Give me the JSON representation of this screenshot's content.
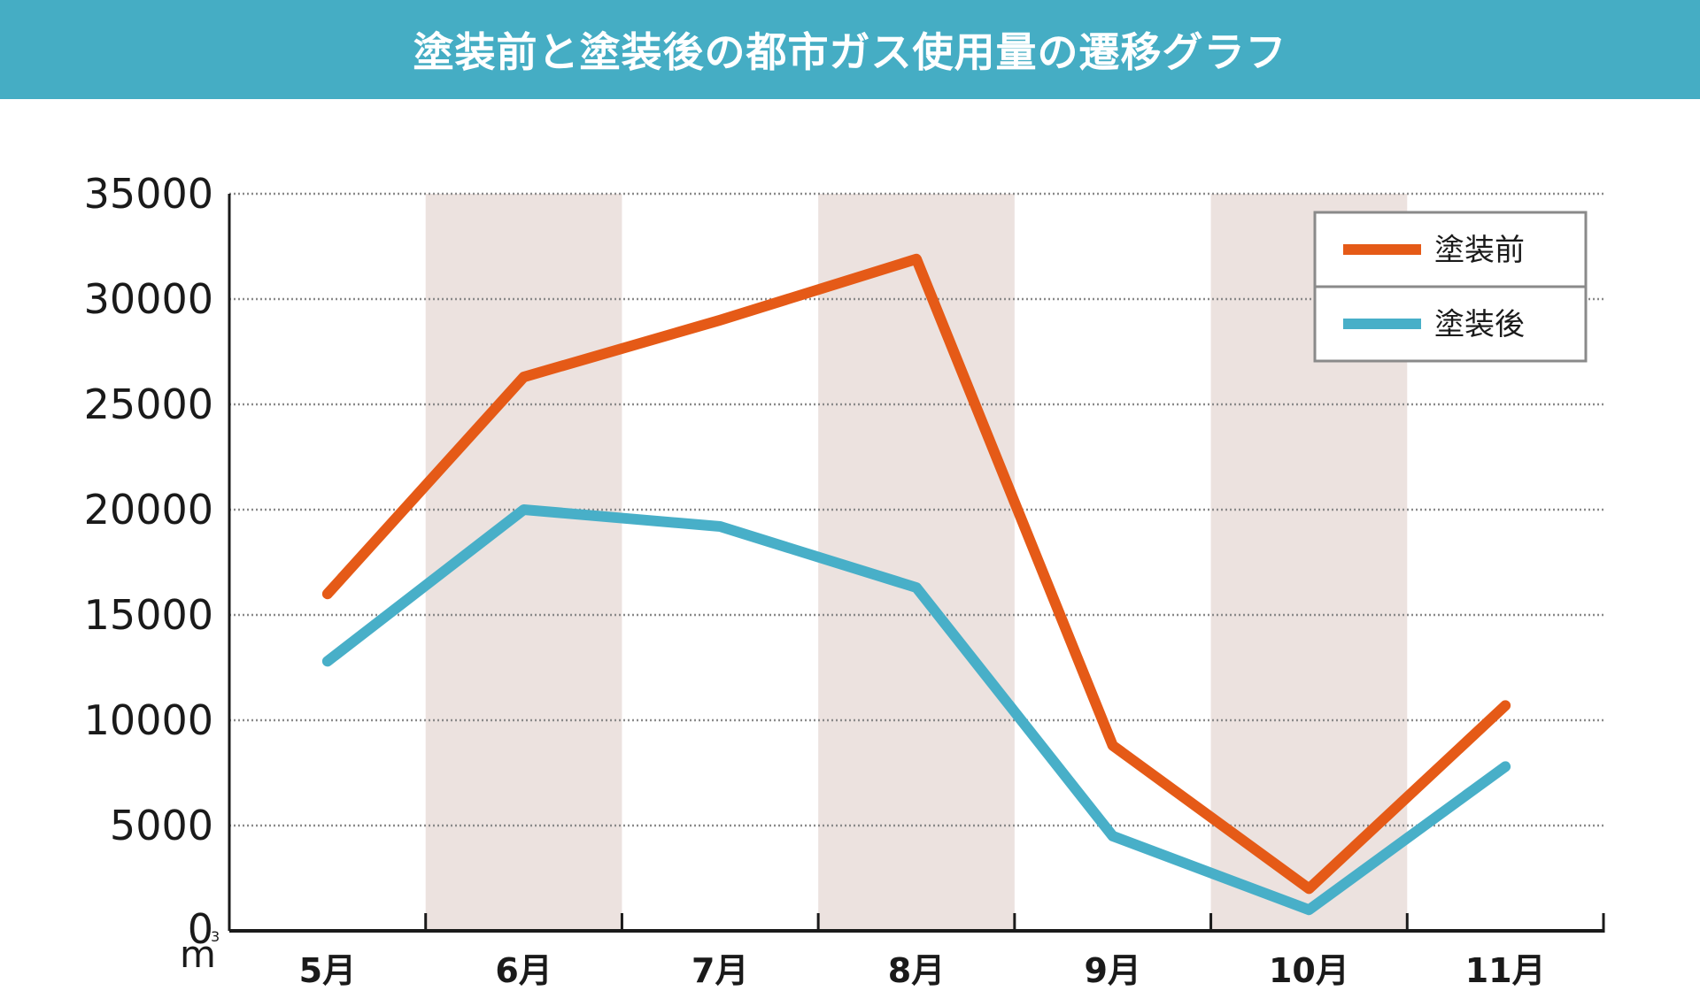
{
  "title": "塗装前と塗装後の都市ガス使用量の遷移グラフ",
  "colors": {
    "title_bg": "#45adc4",
    "before": "#e55a17",
    "after": "#48afc8",
    "band": "#ece2df",
    "grid": "#8a8a8a",
    "axis": "#1a1a1a",
    "legend_border": "#8a8a8a"
  },
  "unit": {
    "base": "m",
    "sup": "3"
  },
  "chart_data": {
    "type": "line",
    "title": "塗装前と塗装後の都市ガス使用量の遷移グラフ",
    "categories": [
      "5月",
      "6月",
      "7月",
      "8月",
      "9月",
      "10月",
      "11月"
    ],
    "series": [
      {
        "name": "塗装前",
        "values": [
          16000,
          26300,
          29000,
          31900,
          8800,
          2000,
          10700
        ]
      },
      {
        "name": "塗装後",
        "values": [
          12800,
          20000,
          19200,
          16300,
          4500,
          1000,
          7800
        ]
      }
    ],
    "y_ticks": [
      "0",
      "5000",
      "10000",
      "15000",
      "20000",
      "25000",
      "30000",
      "35000"
    ],
    "ylim": [
      0,
      35000
    ],
    "xlabel": "",
    "ylabel": "",
    "grid": true,
    "legend_position": "top-right",
    "shaded_columns": [
      1,
      3,
      5
    ]
  }
}
